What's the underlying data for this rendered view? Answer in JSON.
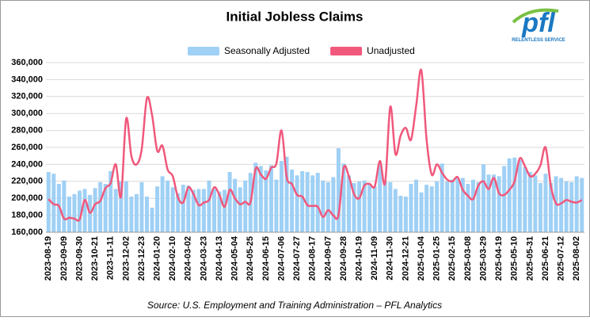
{
  "chart_data": {
    "type": "bar-line",
    "title": "Initial Jobless Claims",
    "source": "Source: U.S. Employment and Training Administration – PFL Analytics",
    "logo": {
      "text": "pfl",
      "tagline": "RELENTLESS SERVICE"
    },
    "categories": [
      "2023-08-19",
      null,
      null,
      "2023-09-09",
      null,
      null,
      "2023-09-30",
      null,
      null,
      "2023-10-21",
      null,
      null,
      "2023-11-11",
      null,
      null,
      "2023-12-02",
      null,
      null,
      "2023-12-23",
      null,
      null,
      "2024-01-20",
      null,
      null,
      "2024-02-10",
      null,
      null,
      "2024-03-02",
      null,
      null,
      "2024-03-23",
      null,
      null,
      "2024-04-13",
      null,
      null,
      "2024-05-04",
      null,
      null,
      "2024-05-25",
      null,
      null,
      "2024-06-15",
      null,
      null,
      "2024-07-06",
      null,
      null,
      "2024-07-27",
      null,
      null,
      "2024-08-17",
      null,
      null,
      "2024-09-07",
      null,
      null,
      "2024-09-28",
      null,
      null,
      "2024-10-19",
      null,
      null,
      "2024-11-09",
      null,
      null,
      "2024-11-30",
      null,
      null,
      "2024-12-21",
      null,
      null,
      "2025-01-04",
      null,
      null,
      "2025-01-25",
      null,
      null,
      "2025-02-15",
      null,
      null,
      "2025-03-08",
      null,
      null,
      "2025-03-29",
      null,
      null,
      "2025-04-19",
      null,
      null,
      "2025-05-10",
      null,
      null,
      "2025-05-31",
      null,
      null,
      "2025-06-21",
      null,
      null,
      "2025-07-12",
      null,
      null,
      "2025-08-02",
      null
    ],
    "series": [
      {
        "name": "Seasonally Adjusted",
        "type": "bar",
        "color": "#9fd0f5",
        "values": [
          231000,
          229000,
          217000,
          221000,
          202000,
          205000,
          209000,
          211000,
          204000,
          212000,
          219000,
          217000,
          232000,
          211000,
          220000,
          220000,
          202000,
          205000,
          219000,
          202000,
          189000,
          214000,
          226000,
          221000,
          213000,
          206000,
          216000,
          215000,
          210000,
          211000,
          211000,
          221000,
          211000,
          208000,
          210000,
          231000,
          223000,
          213000,
          221000,
          230000,
          242000,
          238000,
          233000,
          239000,
          222000,
          244000,
          249000,
          234000,
          227000,
          232000,
          231000,
          227000,
          230000,
          221000,
          219000,
          225000,
          259000,
          241000,
          227000,
          218000,
          220000,
          221000,
          216000,
          214000,
          241000,
          220000,
          219000,
          211000,
          203000,
          202000,
          217000,
          222000,
          207000,
          216000,
          214000,
          220000,
          241000,
          220000,
          222000,
          224000,
          224000,
          217000,
          222000,
          219000,
          240000,
          228000,
          228000,
          226000,
          238000,
          247000,
          248000,
          245000,
          237000,
          231000,
          227000,
          218000,
          229000,
          218000,
          226000,
          224000,
          220000,
          219000,
          226000,
          224000
        ]
      },
      {
        "name": "Unadjusted",
        "type": "line",
        "color": "#f0587c",
        "values": [
          199000,
          193000,
          191000,
          176000,
          177000,
          176000,
          175000,
          198000,
          183000,
          193000,
          197000,
          212000,
          218000,
          240000,
          202000,
          294000,
          250000,
          240000,
          258000,
          318000,
          298000,
          256000,
          262000,
          234000,
          226000,
          201000,
          195000,
          213000,
          205000,
          192000,
          195000,
          198000,
          213000,
          204000,
          190000,
          210000,
          200000,
          193000,
          196000,
          195000,
          235000,
          228000,
          223000,
          236000,
          241000,
          280000,
          225000,
          217000,
          204000,
          202000,
          192000,
          191000,
          190000,
          178000,
          186000,
          180000,
          180000,
          236000,
          226000,
          205000,
          200000,
          215000,
          217000,
          214000,
          244000,
          218000,
          308000,
          252000,
          274000,
          283000,
          269000,
          309000,
          351000,
          270000,
          228000,
          240000,
          230000,
          222000,
          220000,
          225000,
          210000,
          203000,
          199000,
          215000,
          220000,
          211000,
          224000,
          206000,
          204000,
          210000,
          220000,
          247000,
          238000,
          226000,
          229000,
          239000,
          260000,
          215000,
          194000,
          194000,
          198000,
          196000,
          195000,
          198000
        ]
      }
    ],
    "ylim": [
      160000,
      360000
    ],
    "yticks": [
      {
        "value": 160000,
        "label": "160,000"
      },
      {
        "value": 180000,
        "label": "180,000"
      },
      {
        "value": 200000,
        "label": "200,000"
      },
      {
        "value": 220000,
        "label": "220,000"
      },
      {
        "value": 240000,
        "label": "240,000"
      },
      {
        "value": 260000,
        "label": "260,000"
      },
      {
        "value": 280000,
        "label": "280,000"
      },
      {
        "value": 300000,
        "label": "300,000"
      },
      {
        "value": 320000,
        "label": "320,000"
      },
      {
        "value": 340000,
        "label": "340,000"
      },
      {
        "value": 360000,
        "label": "360,000"
      }
    ],
    "grid": true,
    "legend": "top"
  }
}
